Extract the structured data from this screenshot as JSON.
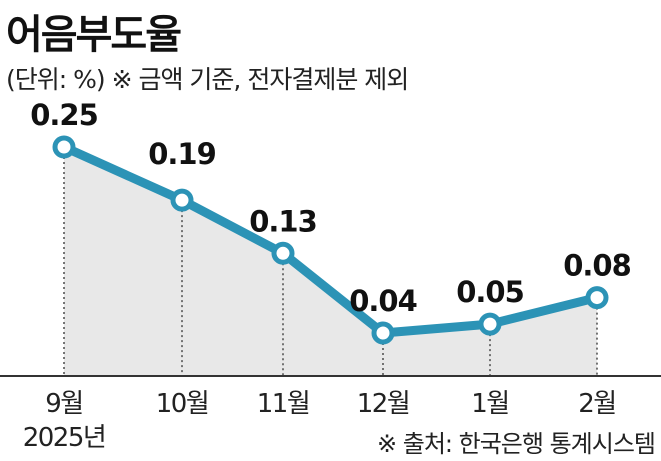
{
  "title": "어음부도율",
  "subtitle": "(단위: %) ※ 금액 기준, 전자결제분 제외",
  "source": "※ 출처: 한국은행 통계시스템",
  "year_label": "2025년",
  "colors": {
    "line": "#2c93b6",
    "area": "#e8e8e8",
    "marker_fill": "#ffffff"
  },
  "chart_data": {
    "type": "line",
    "title": "어음부도율",
    "subtitle": "(단위: %) ※ 금액 기준, 전자결제분 제외",
    "xlabel": "",
    "ylabel": "",
    "categories": [
      "9월",
      "10월",
      "11월",
      "12월",
      "1월",
      "2월"
    ],
    "series": [
      {
        "values": [
          0.25,
          0.19,
          0.13,
          0.04,
          0.05,
          0.08
        ]
      }
    ],
    "value_labels": [
      "0.25",
      "0.19",
      "0.13",
      "0.04",
      "0.05",
      "0.08"
    ],
    "ylim": [
      0,
      0.3
    ],
    "grid": false,
    "legend": "none",
    "area_fill": true,
    "markers": "hollow-circle"
  }
}
